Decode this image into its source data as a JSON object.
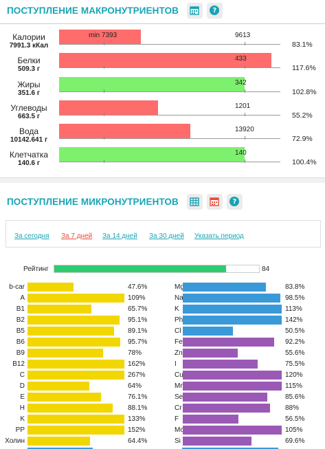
{
  "macro": {
    "title": "ПОСТУПЛЕНИЕ МАКРОНУТРИЕНТОВ",
    "help": "?",
    "rows": [
      {
        "name": "Калории",
        "amount": "7991.3 кКал",
        "min_label": "min 7393",
        "value_label": "9613",
        "percent": "83.1%",
        "fill": 0.369,
        "color": "#ff6c6c"
      },
      {
        "name": "Белки",
        "amount": "509.3 г",
        "min_label": "",
        "value_label": "433",
        "percent": "117.6%",
        "fill": 0.96,
        "color": "#ff6c6c"
      },
      {
        "name": "Жиры",
        "amount": "351.6 г",
        "min_label": "",
        "value_label": "342",
        "percent": "102.8%",
        "fill": 0.839,
        "color": "#7df06d"
      },
      {
        "name": "Углеводы",
        "amount": "663.5 г",
        "min_label": "",
        "value_label": "1201",
        "percent": "55.2%",
        "fill": 0.447,
        "color": "#ff6c6c"
      },
      {
        "name": "Вода",
        "amount": "10142.641 г",
        "min_label": "",
        "value_label": "13920",
        "percent": "72.9%",
        "fill": 0.593,
        "color": "#ff6c6c"
      },
      {
        "name": "Клетчатка",
        "amount": "140.6 г",
        "min_label": "",
        "value_label": "140",
        "percent": "100.4%",
        "fill": 0.839,
        "color": "#7df06d"
      }
    ]
  },
  "micro": {
    "title": "ПОСТУПЛЕНИЕ МИКРОНУТРИЕНТОВ",
    "help": "?",
    "tabs": [
      {
        "label": "За сегодня",
        "active": false
      },
      {
        "label": "За 7 дней",
        "active": true
      },
      {
        "label": "За 14 дней",
        "active": false
      },
      {
        "label": "За 30 дней",
        "active": false
      },
      {
        "label": "Указать период",
        "active": false
      }
    ],
    "rating": {
      "label": "Рейтинг",
      "value": "84",
      "fill": 0.84,
      "color": "#2ecc71"
    },
    "colors": {
      "vitamin": "#f2d600",
      "mineral_blue": "#3a9ad9",
      "mineral_purple": "#9b59b6"
    },
    "left": [
      {
        "name": "b-car",
        "percent": "47.6%",
        "fill": 0.476
      },
      {
        "name": "A",
        "percent": "109%",
        "fill": 1.0
      },
      {
        "name": "B1",
        "percent": "65.7%",
        "fill": 0.657
      },
      {
        "name": "B2",
        "percent": "95.1%",
        "fill": 0.951
      },
      {
        "name": "B5",
        "percent": "89.1%",
        "fill": 0.891
      },
      {
        "name": "B6",
        "percent": "95.7%",
        "fill": 0.957
      },
      {
        "name": "B9",
        "percent": "78%",
        "fill": 0.78
      },
      {
        "name": "B12",
        "percent": "162%",
        "fill": 1.0
      },
      {
        "name": "C",
        "percent": "267%",
        "fill": 1.0
      },
      {
        "name": "D",
        "percent": "64%",
        "fill": 0.64
      },
      {
        "name": "E",
        "percent": "76.1%",
        "fill": 0.761
      },
      {
        "name": "H",
        "percent": "88.1%",
        "fill": 0.881
      },
      {
        "name": "K",
        "percent": "133%",
        "fill": 1.0
      },
      {
        "name": "PP",
        "percent": "152%",
        "fill": 1.0
      },
      {
        "name": "Холин",
        "percent": "64.4%",
        "fill": 0.644
      }
    ],
    "right": [
      {
        "name": "Mg",
        "percent": "83.8%",
        "fill": 0.838,
        "group": "blue"
      },
      {
        "name": "Na",
        "percent": "98.5%",
        "fill": 0.985,
        "group": "blue"
      },
      {
        "name": "K",
        "percent": "113%",
        "fill": 1.0,
        "group": "blue"
      },
      {
        "name": "Ph",
        "percent": "142%",
        "fill": 1.0,
        "group": "blue"
      },
      {
        "name": "Cl",
        "percent": "50.5%",
        "fill": 0.505,
        "group": "blue"
      },
      {
        "name": "Fe",
        "percent": "92.2%",
        "fill": 0.922,
        "group": "purple"
      },
      {
        "name": "Zn",
        "percent": "55.6%",
        "fill": 0.556,
        "group": "purple"
      },
      {
        "name": "I",
        "percent": "75.5%",
        "fill": 0.755,
        "group": "purple"
      },
      {
        "name": "Cu",
        "percent": "120%",
        "fill": 1.0,
        "group": "purple"
      },
      {
        "name": "Mn",
        "percent": "115%",
        "fill": 1.0,
        "group": "purple"
      },
      {
        "name": "Se",
        "percent": "85.6%",
        "fill": 0.856,
        "group": "purple"
      },
      {
        "name": "Cr",
        "percent": "88%",
        "fill": 0.88,
        "group": "purple"
      },
      {
        "name": "F",
        "percent": "56.5%",
        "fill": 0.565,
        "group": "purple"
      },
      {
        "name": "Mo",
        "percent": "105%",
        "fill": 1.0,
        "group": "purple"
      },
      {
        "name": "Si",
        "percent": "69.6%",
        "fill": 0.696,
        "group": "purple"
      }
    ]
  }
}
